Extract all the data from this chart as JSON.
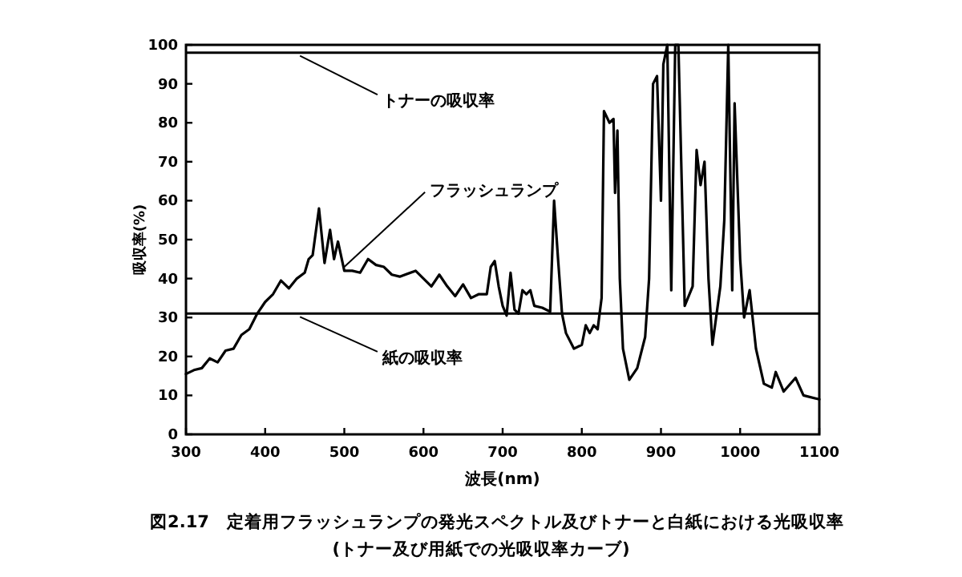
{
  "chart_data": {
    "type": "line",
    "title": "図2.17　定着用フラッシュランプの発光スペクトル及びトナーと白紙における光吸収率",
    "subtitle": "(トナー及び用紙での光吸収率カーブ)",
    "xlabel": "波長(nm)",
    "ylabel": "吸収率(%)",
    "xlim": [
      300,
      1100
    ],
    "ylim": [
      0,
      100
    ],
    "xticks": [
      300,
      400,
      500,
      600,
      700,
      800,
      900,
      1000,
      1100
    ],
    "yticks": [
      0,
      10,
      20,
      30,
      40,
      50,
      60,
      70,
      80,
      90,
      100
    ],
    "grid": false,
    "marker": "none",
    "line_style": "solid",
    "series": [
      {
        "name": "フラッシュランプ",
        "color": "#000000",
        "x": [
          300,
          310,
          320,
          330,
          340,
          350,
          360,
          370,
          380,
          390,
          400,
          410,
          420,
          430,
          440,
          450,
          455,
          460,
          468,
          475,
          482,
          487,
          492,
          500,
          510,
          520,
          530,
          540,
          550,
          560,
          570,
          590,
          600,
          610,
          620,
          630,
          640,
          650,
          660,
          670,
          680,
          685,
          690,
          695,
          700,
          705,
          710,
          715,
          720,
          725,
          730,
          735,
          740,
          750,
          760,
          765,
          770,
          775,
          780,
          790,
          800,
          805,
          810,
          815,
          820,
          825,
          828,
          835,
          840,
          842,
          845,
          848,
          852,
          860,
          870,
          880,
          885,
          890,
          895,
          900,
          903,
          908,
          913,
          918,
          922,
          930,
          940,
          945,
          950,
          955,
          960,
          965,
          975,
          980,
          985,
          990,
          993,
          1000,
          1005,
          1012,
          1020,
          1030,
          1040,
          1045,
          1055,
          1070,
          1080,
          1100
        ],
        "values": [
          15.5,
          16.5,
          17,
          19.5,
          18.5,
          21.5,
          22,
          25.5,
          27,
          31,
          34,
          36,
          39.5,
          37.5,
          40,
          41.5,
          45,
          46,
          58,
          44,
          52.5,
          45,
          49.5,
          42,
          42,
          41.5,
          45,
          43.5,
          43,
          41,
          40.5,
          42,
          40,
          38,
          41,
          38,
          35.5,
          38.5,
          35,
          36,
          36,
          43,
          44.5,
          38,
          33,
          30.5,
          41.5,
          32,
          31,
          37,
          36,
          37,
          33,
          32.5,
          31.5,
          60,
          45,
          31,
          26,
          22,
          23,
          28,
          26,
          28,
          27,
          35,
          83,
          80,
          81,
          62,
          78,
          40,
          22,
          14,
          17,
          25,
          40,
          90,
          92,
          60,
          95,
          100,
          37,
          100,
          100,
          33,
          38,
          73,
          64,
          70,
          40,
          23,
          38,
          55,
          100,
          37,
          85,
          45,
          30,
          37,
          22,
          13,
          12,
          16,
          11,
          14.5,
          10,
          9
        ]
      }
    ],
    "ref_lines": [
      {
        "axis": "y",
        "value": 98,
        "label": "トナーの吸収率",
        "color": "#000000"
      },
      {
        "axis": "y",
        "value": 31,
        "label": "紙の吸収率",
        "color": "#000000"
      }
    ]
  }
}
